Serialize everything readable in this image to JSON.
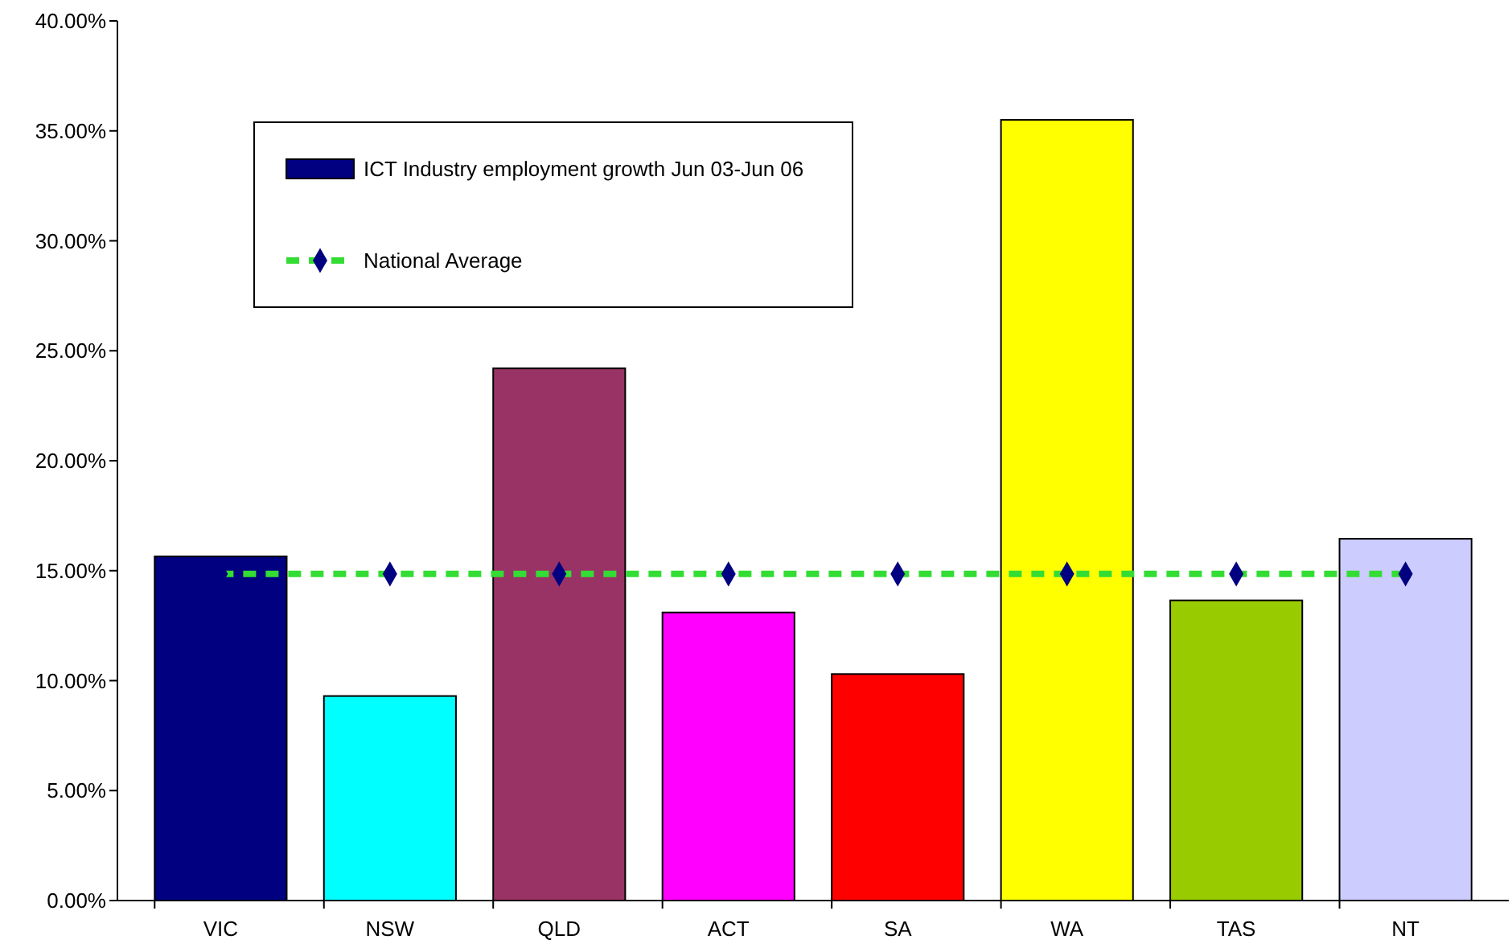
{
  "chart_data": {
    "type": "bar",
    "categories": [
      "VIC",
      "NSW",
      "QLD",
      "ACT",
      "SA",
      "WA",
      "TAS",
      "NT"
    ],
    "series": [
      {
        "name": "ICT Industry employment growth Jun 03-Jun 06",
        "color": "#000080",
        "colors": [
          "#000080",
          "#00ffff",
          "#993366",
          "#ff00ff",
          "#ff0000",
          "#ffff00",
          "#99cc00",
          "#ccccff"
        ],
        "values": [
          15.65,
          9.3,
          24.2,
          13.1,
          10.3,
          35.5,
          13.65,
          16.45
        ]
      },
      {
        "name": "National Average",
        "type": "line",
        "color": "#33dd33",
        "values": [
          14.85,
          14.85,
          14.85,
          14.85,
          14.85,
          14.85,
          14.85,
          14.85
        ],
        "marker": "diamond",
        "line_style": "dashed"
      }
    ],
    "ylim": [
      0,
      40
    ],
    "yticks": [
      {
        "value": 0,
        "label": "0.00%"
      },
      {
        "value": 5,
        "label": "5.00%"
      },
      {
        "value": 10,
        "label": "10.00%"
      },
      {
        "value": 15,
        "label": "15.00%"
      },
      {
        "value": 20,
        "label": "20.00%"
      },
      {
        "value": 25,
        "label": "25.00%"
      },
      {
        "value": 30,
        "label": "30.00%"
      },
      {
        "value": 35,
        "label": "35.00%"
      },
      {
        "value": 40,
        "label": "40.00%"
      }
    ],
    "grid": false,
    "legend": "top left"
  }
}
